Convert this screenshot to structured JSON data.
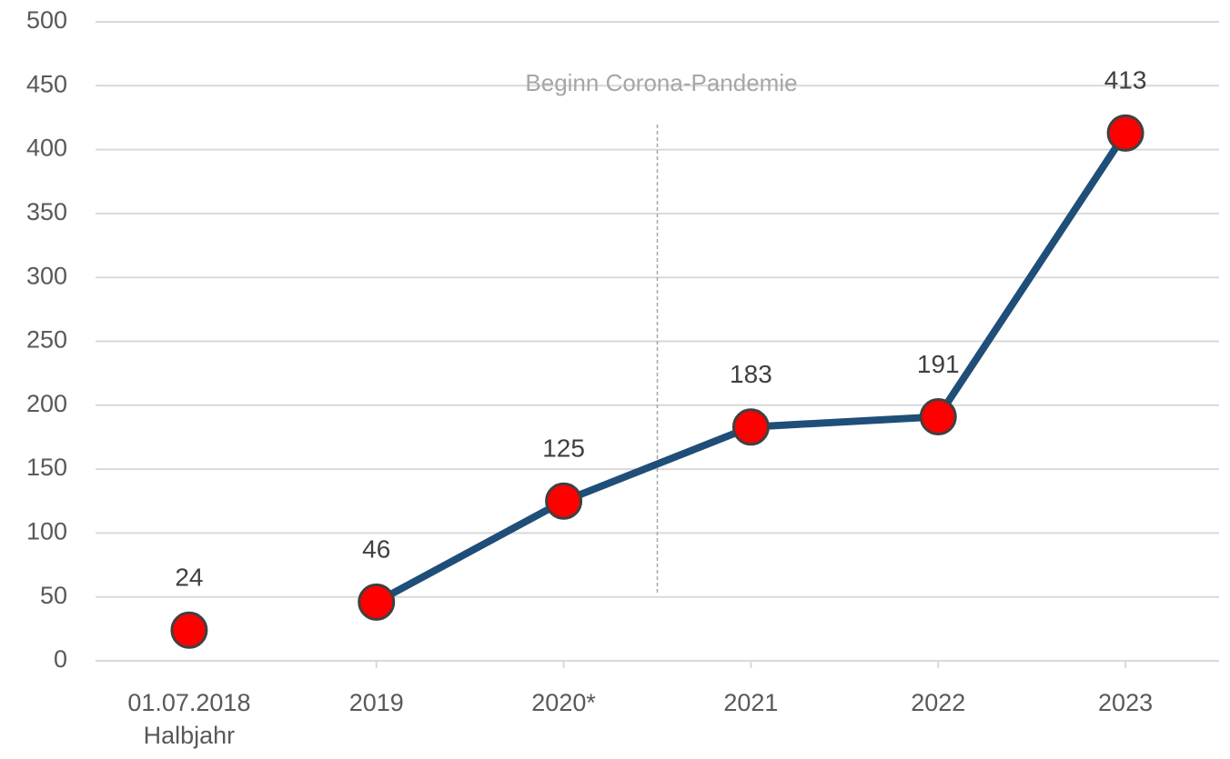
{
  "chart_data": {
    "type": "line",
    "categories": [
      "01.07.2018\nHalbjahr",
      "2019",
      "2020*",
      "2021",
      "2022",
      "2023"
    ],
    "series": [
      {
        "color": "#1f4e79",
        "marker_color": "#ff0000",
        "values": [
          24,
          null,
          null,
          null,
          null,
          null
        ]
      },
      {
        "color": "#1f4e79",
        "marker_color": "#ff0000",
        "values": [
          null,
          46,
          125,
          183,
          191,
          413
        ]
      }
    ],
    "annotation": "Beginn Corona-Pandemie",
    "ylim": [
      0,
      500
    ],
    "yticks": [
      0,
      50,
      100,
      150,
      200,
      250,
      300,
      350,
      400,
      450,
      500
    ],
    "grid": true
  }
}
